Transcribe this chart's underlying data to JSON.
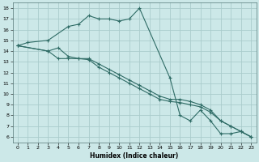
{
  "title": "",
  "xlabel": "Humidex (Indice chaleur)",
  "bg_color": "#cce8e8",
  "grid_color": "#aacccc",
  "line_color": "#2e6b65",
  "xlim": [
    -0.5,
    23.5
  ],
  "ylim": [
    5.5,
    18.5
  ],
  "xticks": [
    0,
    1,
    2,
    3,
    4,
    5,
    6,
    7,
    8,
    9,
    10,
    11,
    12,
    13,
    14,
    15,
    16,
    17,
    18,
    19,
    20,
    21,
    22,
    23
  ],
  "yticks": [
    6,
    7,
    8,
    9,
    10,
    11,
    12,
    13,
    14,
    15,
    16,
    17,
    18
  ],
  "line1_x": [
    0,
    1,
    3,
    5,
    6,
    7,
    8,
    9,
    10,
    11,
    12,
    15,
    16,
    17,
    18,
    19,
    20,
    21,
    22,
    23
  ],
  "line1_y": [
    14.5,
    14.8,
    15.0,
    16.3,
    16.5,
    17.3,
    17.0,
    17.0,
    16.8,
    17.0,
    18.0,
    11.5,
    8.0,
    7.5,
    8.5,
    7.5,
    6.3,
    6.3,
    6.5,
    6.0
  ],
  "line2_x": [
    0,
    3,
    4,
    5,
    6,
    7,
    8,
    9,
    10,
    11,
    12,
    13,
    14,
    15,
    16,
    17,
    18,
    19,
    20,
    21,
    22,
    23
  ],
  "line2_y": [
    14.5,
    14.0,
    13.3,
    13.3,
    13.3,
    13.2,
    12.5,
    12.0,
    11.5,
    11.0,
    10.5,
    10.0,
    9.5,
    9.3,
    9.2,
    9.0,
    8.8,
    8.3,
    7.5,
    7.0,
    6.5,
    6.0
  ],
  "line3_x": [
    0,
    3,
    4,
    5,
    6,
    7,
    8,
    9,
    10,
    11,
    12,
    13,
    14,
    15,
    16,
    17,
    18,
    19,
    20,
    21,
    22,
    23
  ],
  "line3_y": [
    14.5,
    14.0,
    14.3,
    13.5,
    13.3,
    13.3,
    12.8,
    12.3,
    11.8,
    11.3,
    10.8,
    10.3,
    9.8,
    9.5,
    9.5,
    9.3,
    9.0,
    8.5,
    7.5,
    7.0,
    6.5,
    6.0
  ]
}
